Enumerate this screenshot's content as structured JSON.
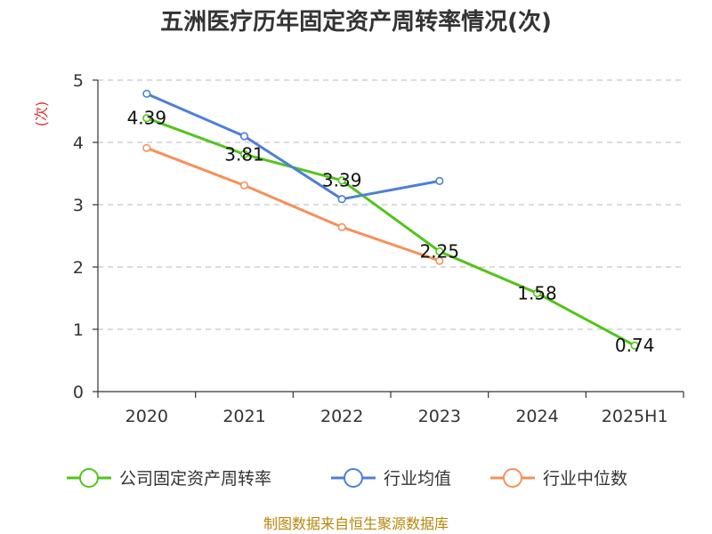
{
  "chart_data": {
    "type": "line",
    "title": "五洲医疗历年固定资产周转率情况(次)",
    "ylabel": "(次)",
    "xlabel": "",
    "categories": [
      "2020",
      "2021",
      "2022",
      "2023",
      "2024",
      "2025H1"
    ],
    "ylim": [
      0,
      5
    ],
    "yticks": [
      0,
      1,
      2,
      3,
      4,
      5
    ],
    "grid": "horizontal dashed",
    "legend_position": "bottom",
    "series": [
      {
        "name": "公司固定资产周转率",
        "color": "#52c41a",
        "values": [
          4.39,
          3.81,
          3.39,
          2.25,
          1.58,
          0.74
        ],
        "data_labels": [
          "4.39",
          "3.81",
          "3.39",
          "2.25",
          "1.58",
          "0.74"
        ]
      },
      {
        "name": "行业均值",
        "color": "#4e7fd8",
        "values": [
          4.78,
          4.1,
          3.09,
          3.38,
          null,
          null
        ]
      },
      {
        "name": "行业中位数",
        "color": "#f5905a",
        "values": [
          3.91,
          3.31,
          2.64,
          2.1,
          null,
          null
        ]
      }
    ]
  },
  "source_text": "制图数据来自恒生聚源数据库"
}
